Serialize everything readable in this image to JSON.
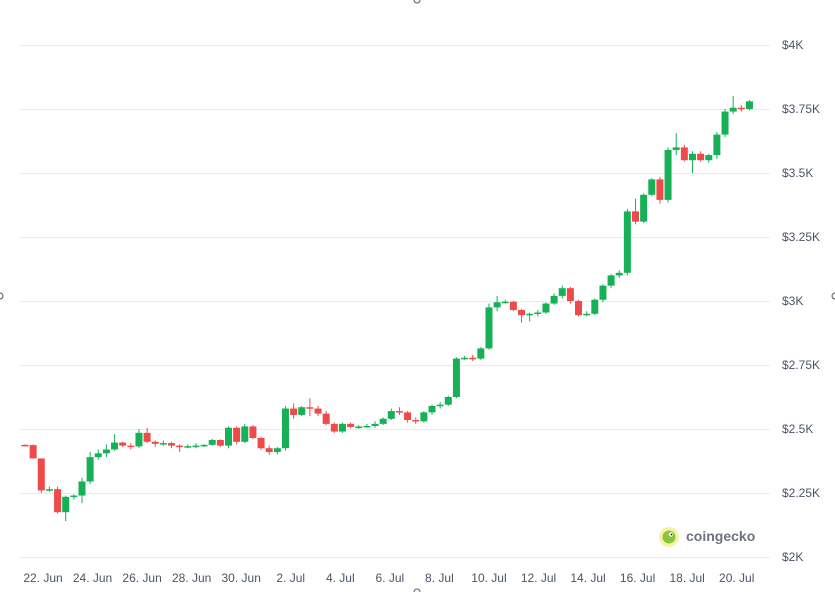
{
  "colors": {
    "up": "#16b157",
    "down": "#ef4a4a",
    "grid": "#e8eaee",
    "text": "#4a5565"
  },
  "watermark": {
    "text": "coingecko",
    "icon": "gecko-logo-icon"
  },
  "chart_data": {
    "type": "candlestick",
    "ylim": [
      2000,
      4000
    ],
    "yticks": [
      {
        "value": 4000,
        "label": "$4K"
      },
      {
        "value": 3750,
        "label": "$3.75K"
      },
      {
        "value": 3500,
        "label": "$3.5K"
      },
      {
        "value": 3250,
        "label": "$3.25K"
      },
      {
        "value": 3000,
        "label": "$3K"
      },
      {
        "value": 2750,
        "label": "$2.75K"
      },
      {
        "value": 2500,
        "label": "$2.5K"
      },
      {
        "value": 2250,
        "label": "$2.25K"
      },
      {
        "value": 2000,
        "label": "$2K"
      }
    ],
    "xticks": [
      "22. Jun",
      "24. Jun",
      "26. Jun",
      "28. Jun",
      "30. Jun",
      "2. Jul",
      "4. Jul",
      "6. Jul",
      "8. Jul",
      "10. Jul",
      "12. Jul",
      "14. Jul",
      "16. Jul",
      "18. Jul",
      "20. Jul"
    ],
    "ohlc": [
      [
        2438,
        2440,
        2433,
        2437
      ],
      [
        2437,
        2440,
        2385,
        2385
      ],
      [
        2385,
        2385,
        2250,
        2260
      ],
      [
        2260,
        2275,
        2255,
        2265
      ],
      [
        2265,
        2275,
        2170,
        2175
      ],
      [
        2175,
        2240,
        2140,
        2235
      ],
      [
        2235,
        2245,
        2225,
        2240
      ],
      [
        2240,
        2310,
        2210,
        2295
      ],
      [
        2295,
        2410,
        2285,
        2390
      ],
      [
        2390,
        2420,
        2380,
        2405
      ],
      [
        2405,
        2440,
        2390,
        2420
      ],
      [
        2420,
        2480,
        2415,
        2447
      ],
      [
        2447,
        2450,
        2430,
        2435
      ],
      [
        2435,
        2445,
        2420,
        2432
      ],
      [
        2432,
        2500,
        2425,
        2485
      ],
      [
        2485,
        2505,
        2445,
        2450
      ],
      [
        2450,
        2455,
        2430,
        2442
      ],
      [
        2442,
        2455,
        2435,
        2445
      ],
      [
        2445,
        2450,
        2425,
        2435
      ],
      [
        2435,
        2440,
        2410,
        2430
      ],
      [
        2430,
        2440,
        2425,
        2433
      ],
      [
        2433,
        2445,
        2425,
        2435
      ],
      [
        2435,
        2440,
        2430,
        2438
      ],
      [
        2438,
        2462,
        2435,
        2457
      ],
      [
        2457,
        2460,
        2430,
        2435
      ],
      [
        2435,
        2510,
        2425,
        2505
      ],
      [
        2505,
        2510,
        2440,
        2450
      ],
      [
        2450,
        2520,
        2445,
        2510
      ],
      [
        2510,
        2515,
        2460,
        2465
      ],
      [
        2465,
        2470,
        2418,
        2425
      ],
      [
        2425,
        2435,
        2400,
        2410
      ],
      [
        2410,
        2430,
        2400,
        2425
      ],
      [
        2425,
        2590,
        2415,
        2580
      ],
      [
        2580,
        2600,
        2540,
        2555
      ],
      [
        2555,
        2590,
        2550,
        2585
      ],
      [
        2585,
        2620,
        2550,
        2580
      ],
      [
        2580,
        2590,
        2550,
        2560
      ],
      [
        2560,
        2570,
        2515,
        2520
      ],
      [
        2520,
        2525,
        2485,
        2490
      ],
      [
        2490,
        2525,
        2485,
        2520
      ],
      [
        2520,
        2525,
        2503,
        2508
      ],
      [
        2508,
        2515,
        2500,
        2510
      ],
      [
        2510,
        2520,
        2505,
        2512
      ],
      [
        2512,
        2530,
        2505,
        2520
      ],
      [
        2520,
        2545,
        2515,
        2540
      ],
      [
        2540,
        2580,
        2535,
        2570
      ],
      [
        2570,
        2585,
        2555,
        2565
      ],
      [
        2565,
        2570,
        2525,
        2535
      ],
      [
        2535,
        2545,
        2520,
        2530
      ],
      [
        2530,
        2570,
        2525,
        2565
      ],
      [
        2565,
        2595,
        2555,
        2590
      ],
      [
        2590,
        2605,
        2580,
        2595
      ],
      [
        2595,
        2630,
        2590,
        2625
      ],
      [
        2625,
        2780,
        2620,
        2775
      ],
      [
        2775,
        2785,
        2770,
        2778
      ],
      [
        2778,
        2790,
        2765,
        2775
      ],
      [
        2775,
        2820,
        2770,
        2815
      ],
      [
        2815,
        2990,
        2810,
        2975
      ],
      [
        2975,
        3020,
        2960,
        2995
      ],
      [
        2995,
        3005,
        2990,
        2997
      ],
      [
        2997,
        3000,
        2960,
        2965
      ],
      [
        2965,
        2970,
        2915,
        2945
      ],
      [
        2945,
        2955,
        2920,
        2950
      ],
      [
        2950,
        2965,
        2940,
        2955
      ],
      [
        2955,
        2995,
        2950,
        2990
      ],
      [
        2990,
        3030,
        2985,
        3020
      ],
      [
        3020,
        3060,
        3010,
        3050
      ],
      [
        3050,
        3055,
        2990,
        3000
      ],
      [
        3000,
        3005,
        2940,
        2945
      ],
      [
        2945,
        2960,
        2940,
        2950
      ],
      [
        2950,
        3010,
        2945,
        3005
      ],
      [
        3005,
        3065,
        2995,
        3060
      ],
      [
        3060,
        3105,
        3050,
        3100
      ],
      [
        3100,
        3120,
        3090,
        3110
      ],
      [
        3110,
        3360,
        3100,
        3350
      ],
      [
        3350,
        3400,
        3300,
        3310
      ],
      [
        3310,
        3420,
        3305,
        3415
      ],
      [
        3415,
        3480,
        3410,
        3475
      ],
      [
        3475,
        3485,
        3380,
        3395
      ],
      [
        3395,
        3600,
        3385,
        3590
      ],
      [
        3590,
        3655,
        3570,
        3600
      ],
      [
        3600,
        3610,
        3545,
        3550
      ],
      [
        3550,
        3585,
        3500,
        3575
      ],
      [
        3575,
        3585,
        3545,
        3550
      ],
      [
        3550,
        3575,
        3540,
        3570
      ],
      [
        3570,
        3660,
        3555,
        3650
      ],
      [
        3650,
        3750,
        3640,
        3740
      ],
      [
        3740,
        3800,
        3730,
        3755
      ],
      [
        3755,
        3765,
        3740,
        3750
      ],
      [
        3750,
        3785,
        3745,
        3780
      ]
    ]
  }
}
